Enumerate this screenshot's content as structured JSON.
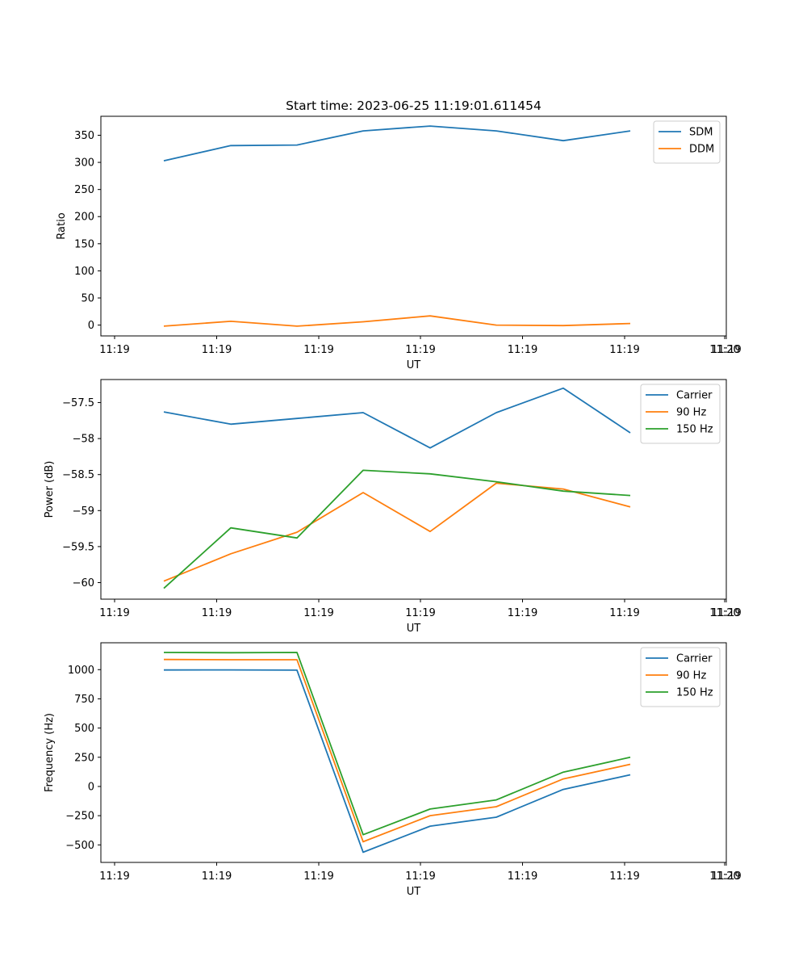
{
  "chart_data": [
    {
      "type": "line",
      "title": "Start time: 2023-06-25 11:19:01.611454",
      "xlabel": "UT",
      "ylabel": "Ratio",
      "x_tick_labels": [
        "11:19",
        "11:19",
        "11:19",
        "11:19",
        "11:19",
        "11:19",
        "11:19",
        "11:20"
      ],
      "x": [
        1,
        2,
        3,
        4,
        5,
        6,
        7,
        8
      ],
      "ylim": [
        -20,
        385
      ],
      "yticks": [
        0,
        50,
        100,
        150,
        200,
        250,
        300,
        350
      ],
      "legend_position": "upper right",
      "grid": false,
      "series": [
        {
          "name": "SDM",
          "color": "#1f77b4",
          "values": [
            303,
            331,
            332,
            358,
            367,
            358,
            340,
            358
          ]
        },
        {
          "name": "DDM",
          "color": "#ff7f0e",
          "values": [
            -2,
            7,
            -2,
            6,
            17,
            0,
            -1,
            3
          ]
        }
      ]
    },
    {
      "type": "line",
      "title": "",
      "xlabel": "UT",
      "ylabel": "Power (dB)",
      "x_tick_labels": [
        "11:19",
        "11:19",
        "11:19",
        "11:19",
        "11:19",
        "11:19",
        "11:19",
        "11:20"
      ],
      "x": [
        1,
        2,
        3,
        4,
        5,
        6,
        7,
        8
      ],
      "ylim": [
        -60.23,
        -57.18
      ],
      "yticks": [
        -60.0,
        -59.5,
        -59.0,
        -58.5,
        -58.0,
        -57.5
      ],
      "legend_position": "upper right",
      "grid": false,
      "series": [
        {
          "name": "Carrier",
          "color": "#1f77b4",
          "values": [
            -57.63,
            -57.8,
            -57.72,
            -57.64,
            -58.13,
            -57.64,
            -57.3,
            -57.92
          ]
        },
        {
          "name": "90 Hz",
          "color": "#ff7f0e",
          "values": [
            -59.98,
            -59.6,
            -59.3,
            -58.75,
            -59.29,
            -58.62,
            -58.7,
            -58.95
          ]
        },
        {
          "name": "150 Hz",
          "color": "#2ca02c",
          "values": [
            -60.08,
            -59.24,
            -59.38,
            -58.44,
            -58.49,
            -58.6,
            -58.73,
            -58.79
          ]
        }
      ]
    },
    {
      "type": "line",
      "title": "",
      "xlabel": "UT",
      "ylabel": "Frequency (Hz)",
      "x_tick_labels": [
        "11:19",
        "11:19",
        "11:19",
        "11:19",
        "11:19",
        "11:19",
        "11:19",
        "11:20"
      ],
      "x": [
        1,
        2,
        3,
        4,
        5,
        6,
        7,
        8
      ],
      "ylim": [
        -650,
        1230
      ],
      "yticks": [
        -500,
        -250,
        0,
        250,
        500,
        750,
        1000
      ],
      "legend_position": "upper right",
      "grid": false,
      "series": [
        {
          "name": "Carrier",
          "color": "#1f77b4",
          "values": [
            997,
            998,
            996,
            -563,
            -340,
            -263,
            -25,
            100
          ]
        },
        {
          "name": "90 Hz",
          "color": "#ff7f0e",
          "values": [
            1087,
            1085,
            1085,
            -473,
            -250,
            -173,
            65,
            190
          ]
        },
        {
          "name": "150 Hz",
          "color": "#2ca02c",
          "values": [
            1147,
            1145,
            1147,
            -413,
            -193,
            -115,
            123,
            250
          ]
        }
      ]
    }
  ]
}
